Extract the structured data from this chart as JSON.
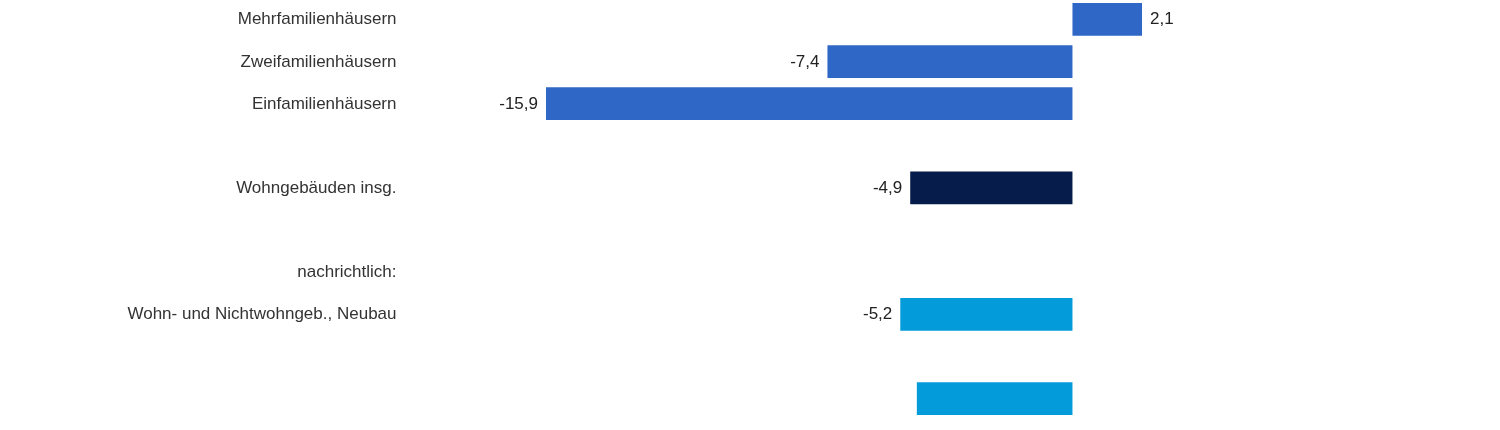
{
  "chart_data": {
    "type": "bar",
    "orientation": "horizontal",
    "categories": [
      "Mehrfamilienhäusern",
      "Zweifamilienhäusern",
      "Einfamilienhäusern",
      null,
      "Wohngebäuden insg.",
      null,
      null,
      "Wohn- und Nichtwohngeb., Neubau",
      null,
      null
    ],
    "values": [
      2.1,
      -7.4,
      -15.9,
      null,
      -4.9,
      null,
      null,
      -5.2,
      null,
      -4.7
    ],
    "colors": [
      "#2e67c5",
      "#2e67c5",
      "#2e67c5",
      null,
      "#061c4a",
      null,
      null,
      "#049bdb",
      null,
      "#049bdb"
    ],
    "value_labels": [
      "2,1",
      "-7,4",
      "-15,9",
      null,
      "-4,9",
      null,
      null,
      "-5,2",
      null,
      null
    ],
    "annotations": [
      "nachrichtlich:"
    ]
  }
}
